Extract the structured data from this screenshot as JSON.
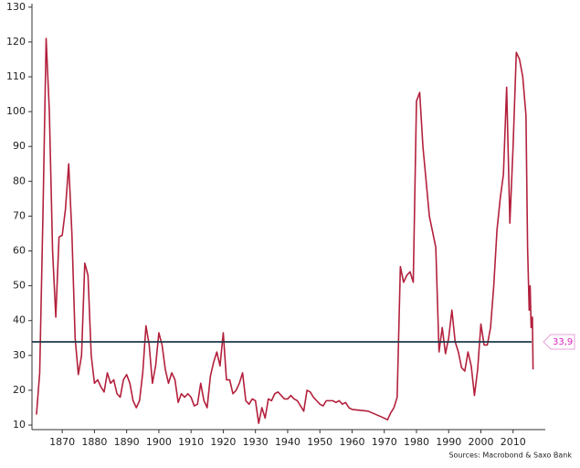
{
  "chart_data": {
    "type": "line",
    "x": [
      1862,
      1863,
      1864,
      1865,
      1866,
      1867,
      1868,
      1869,
      1870,
      1871,
      1872,
      1873,
      1874,
      1875,
      1876,
      1877,
      1878,
      1879,
      1880,
      1881,
      1882,
      1883,
      1884,
      1885,
      1886,
      1887,
      1888,
      1889,
      1890,
      1891,
      1892,
      1893,
      1894,
      1895,
      1896,
      1897,
      1898,
      1899,
      1900,
      1901,
      1902,
      1903,
      1904,
      1905,
      1906,
      1907,
      1908,
      1909,
      1910,
      1911,
      1912,
      1913,
      1914,
      1915,
      1916,
      1917,
      1918,
      1919,
      1920,
      1921,
      1922,
      1923,
      1924,
      1925,
      1926,
      1927,
      1928,
      1929,
      1930,
      1931,
      1932,
      1933,
      1934,
      1935,
      1936,
      1937,
      1938,
      1939,
      1940,
      1941,
      1942,
      1943,
      1944,
      1945,
      1946,
      1947,
      1948,
      1949,
      1950,
      1951,
      1952,
      1953,
      1954,
      1955,
      1956,
      1957,
      1958,
      1959,
      1960,
      1965,
      1970,
      1971,
      1972,
      1973,
      1974,
      1975,
      1976,
      1977,
      1978,
      1979,
      1980,
      1981,
      1982,
      1984,
      1986,
      1987,
      1988,
      1989,
      1990,
      1991,
      1992,
      1993,
      1994,
      1995,
      1996,
      1997,
      1998,
      1999,
      2000,
      2001,
      2002,
      2003,
      2004,
      2005,
      2006,
      2007,
      2008,
      2009,
      2010,
      2011,
      2012,
      2013,
      2014,
      2014.5,
      2015,
      2015.3,
      2015.6,
      2016,
      2016.2
    ],
    "series": [
      {
        "color": "#b3203c",
        "values": [
          13,
          25,
          70,
          121,
          100,
          60,
          41,
          64,
          64.5,
          72,
          85,
          65,
          35,
          24.5,
          30,
          56.5,
          53,
          30,
          22,
          23,
          21,
          19.5,
          25,
          22,
          23,
          19,
          18,
          23,
          24.5,
          22,
          17,
          15,
          17,
          25,
          38.5,
          33,
          22,
          27,
          36.5,
          33,
          26,
          22,
          25,
          23,
          16.5,
          19,
          18,
          19,
          18,
          15.5,
          16,
          22,
          17,
          15,
          24,
          28,
          31,
          27,
          36.5,
          23,
          23,
          19,
          20,
          22,
          25,
          17,
          16,
          17.5,
          17,
          10.5,
          15,
          12,
          17.5,
          17,
          19,
          19.5,
          18.5,
          17.5,
          17.5,
          18.5,
          17.5,
          17,
          15.5,
          14,
          20,
          19.5,
          18,
          17,
          16,
          15.5,
          17,
          17,
          17,
          16.5,
          17,
          16,
          16.5,
          15,
          14.5,
          14,
          12,
          11.5,
          13.5,
          15,
          18,
          55.5,
          51,
          53,
          54,
          51,
          103,
          105.5,
          90,
          70,
          61,
          31,
          38,
          30.5,
          35,
          43,
          34,
          31,
          26.5,
          25.5,
          31,
          27,
          18.5,
          26,
          39,
          33,
          33,
          38,
          50,
          66,
          75,
          82,
          107,
          68,
          90,
          117,
          115,
          110,
          99,
          61,
          43,
          50,
          38,
          41,
          26
        ]
      }
    ],
    "reference_line": {
      "value": 33.9,
      "label": "33,9",
      "color": "#1c3a4a"
    },
    "xlim": [
      1860.6,
      2020
    ],
    "ylim": [
      8.7,
      131
    ],
    "xticks": [
      1870,
      1880,
      1890,
      1900,
      1910,
      1920,
      1930,
      1940,
      1950,
      1960,
      1970,
      1980,
      1990,
      2000,
      2010
    ],
    "yticks": [
      10,
      20,
      30,
      40,
      50,
      60,
      70,
      80,
      90,
      100,
      110,
      120,
      130
    ],
    "source": "Sources: Macrobond & Saxo Bank"
  }
}
